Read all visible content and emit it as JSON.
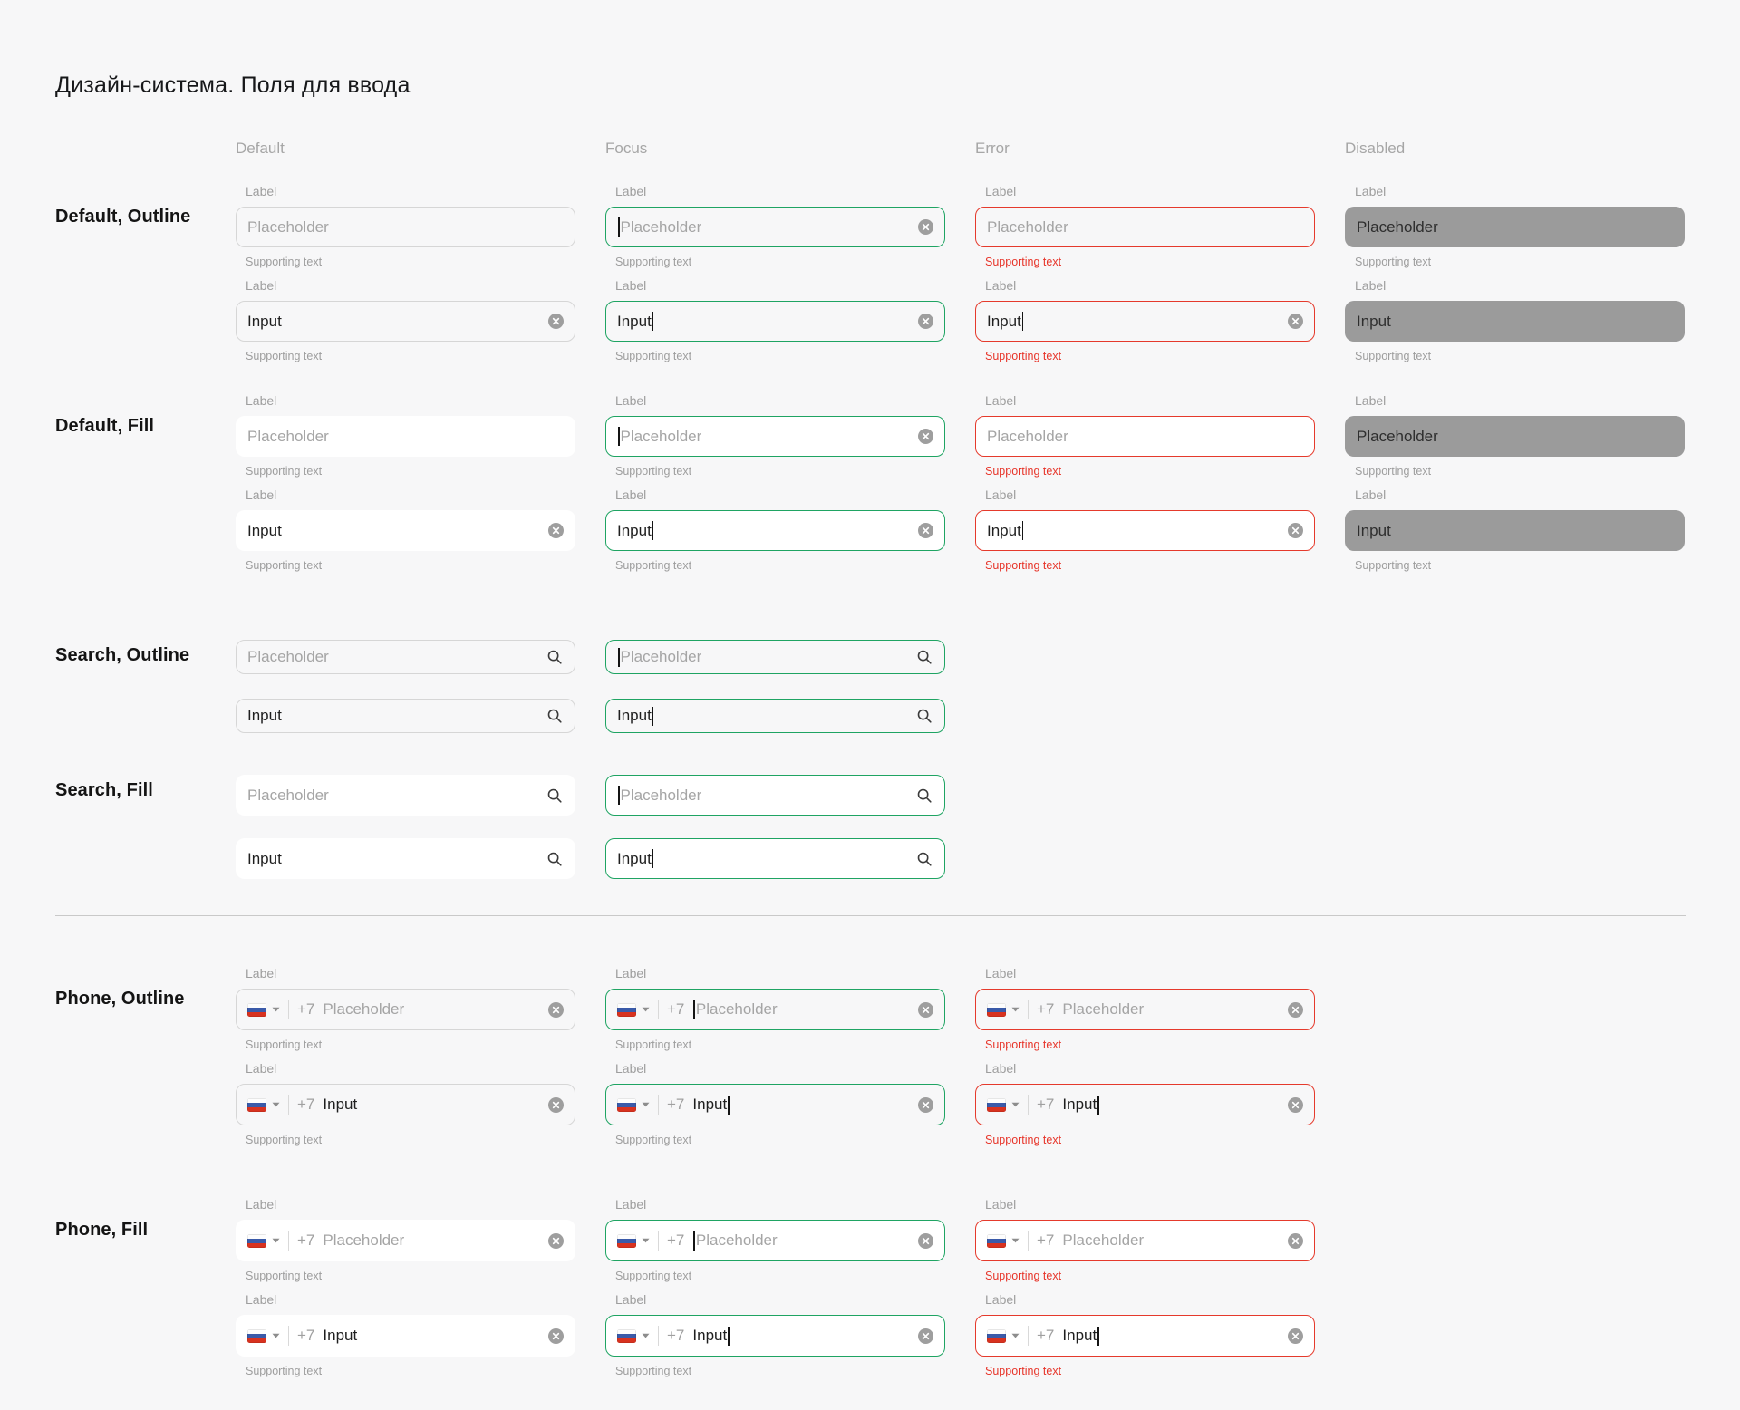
{
  "page": {
    "title": "Дизайн-система. Поля для ввода"
  },
  "column_headers": [
    {
      "label": "Default"
    },
    {
      "label": "Focus"
    },
    {
      "label": "Error"
    },
    {
      "label": "Disabled"
    }
  ],
  "field": {
    "label": "Label",
    "placeholder": "Placeholder",
    "value": "Input",
    "supporting": "Supporting text",
    "phone_prefix": "+7"
  },
  "colors": {
    "background": "#f7f7f8",
    "fill_white": "#ffffff",
    "outline_border": "#d6d6d6",
    "focus_green": "#1fa463",
    "error_red": "#e53a2c",
    "disabled_gray": "#9b9b9b",
    "text_dark": "#1f1f1f",
    "placeholder_gray": "#a5a5a5",
    "label_gray": "#9e9e9e"
  },
  "icons": {
    "clear": "clear-circle-icon",
    "search": "magnifier-icon",
    "flag": "russia-flag-icon",
    "chevron": "chevron-down-icon",
    "caret": "text-caret"
  },
  "sections": [
    {
      "title": "Default, Outline",
      "kind": "text",
      "variant": "outline",
      "labeled": true,
      "columns": [
        {
          "state": "default",
          "groups": [
            {
              "text": "placeholder",
              "caret": null,
              "clear": false
            },
            {
              "text": "value",
              "caret": null,
              "clear": true
            }
          ]
        },
        {
          "state": "focus",
          "groups": [
            {
              "text": "placeholder",
              "caret": "before",
              "clear": true
            },
            {
              "text": "value",
              "caret": "after",
              "clear": true
            }
          ]
        },
        {
          "state": "error",
          "groups": [
            {
              "text": "placeholder",
              "caret": null,
              "clear": false
            },
            {
              "text": "value",
              "caret": "after",
              "clear": true
            }
          ]
        },
        {
          "state": "disabled",
          "groups": [
            {
              "text": "placeholder",
              "caret": null,
              "clear": false
            },
            {
              "text": "value",
              "caret": null,
              "clear": false
            }
          ]
        }
      ]
    },
    {
      "title": "Default, Fill",
      "kind": "text",
      "variant": "fill",
      "labeled": true,
      "columns": [
        {
          "state": "default",
          "groups": [
            {
              "text": "placeholder",
              "caret": null,
              "clear": false
            },
            {
              "text": "value",
              "caret": null,
              "clear": true
            }
          ]
        },
        {
          "state": "focus",
          "groups": [
            {
              "text": "placeholder",
              "caret": "before",
              "clear": true
            },
            {
              "text": "value",
              "caret": "after",
              "clear": true
            }
          ]
        },
        {
          "state": "error",
          "groups": [
            {
              "text": "placeholder",
              "caret": null,
              "clear": false
            },
            {
              "text": "value",
              "caret": "after",
              "clear": true
            }
          ]
        },
        {
          "state": "disabled",
          "groups": [
            {
              "text": "placeholder",
              "caret": null,
              "clear": false
            },
            {
              "text": "value",
              "caret": null,
              "clear": false
            }
          ]
        }
      ]
    },
    {
      "title": "Search, Outline",
      "kind": "search",
      "variant": "outline",
      "labeled": false,
      "columns": [
        {
          "state": "default",
          "groups": [
            {
              "text": "placeholder",
              "caret": null,
              "clear": false
            },
            {
              "text": "value",
              "caret": null,
              "clear": false
            }
          ]
        },
        {
          "state": "focus",
          "groups": [
            {
              "text": "placeholder",
              "caret": "before",
              "clear": false
            },
            {
              "text": "value",
              "caret": "after",
              "clear": false
            }
          ]
        }
      ]
    },
    {
      "title": "Search, Fill",
      "kind": "search",
      "variant": "fill",
      "labeled": false,
      "columns": [
        {
          "state": "default",
          "groups": [
            {
              "text": "placeholder",
              "caret": null,
              "clear": false
            },
            {
              "text": "value",
              "caret": null,
              "clear": false
            }
          ]
        },
        {
          "state": "focus",
          "groups": [
            {
              "text": "placeholder",
              "caret": "before",
              "clear": false
            },
            {
              "text": "value",
              "caret": "after",
              "clear": false
            }
          ]
        }
      ]
    },
    {
      "title": "Phone, Outline",
      "kind": "phone",
      "variant": "outline",
      "labeled": true,
      "columns": [
        {
          "state": "default",
          "groups": [
            {
              "text": "placeholder",
              "caret": null,
              "clear": true
            },
            {
              "text": "value",
              "caret": null,
              "clear": true
            }
          ]
        },
        {
          "state": "focus",
          "groups": [
            {
              "text": "placeholder",
              "caret": "before",
              "clear": true
            },
            {
              "text": "value",
              "caret": "after",
              "clear": true
            }
          ]
        },
        {
          "state": "error",
          "groups": [
            {
              "text": "placeholder",
              "caret": null,
              "clear": true
            },
            {
              "text": "value",
              "caret": "after",
              "clear": true
            }
          ]
        }
      ]
    },
    {
      "title": "Phone, Fill",
      "kind": "phone",
      "variant": "fill",
      "labeled": true,
      "columns": [
        {
          "state": "default",
          "groups": [
            {
              "text": "placeholder",
              "caret": null,
              "clear": true
            },
            {
              "text": "value",
              "caret": null,
              "clear": true
            }
          ]
        },
        {
          "state": "focus",
          "groups": [
            {
              "text": "placeholder",
              "caret": "before",
              "clear": true
            },
            {
              "text": "value",
              "caret": "after",
              "clear": true
            }
          ]
        },
        {
          "state": "error",
          "groups": [
            {
              "text": "placeholder",
              "caret": null,
              "clear": true
            },
            {
              "text": "value",
              "caret": "after",
              "clear": true
            }
          ]
        }
      ]
    }
  ]
}
